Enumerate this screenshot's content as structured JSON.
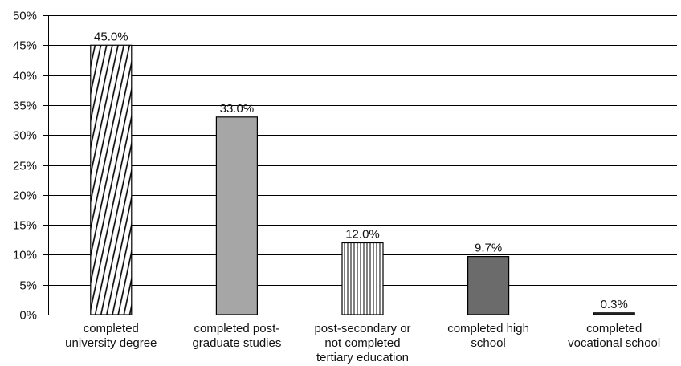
{
  "chart_data": {
    "type": "bar",
    "title": "",
    "xlabel": "",
    "ylabel": "",
    "ylim": [
      0,
      50
    ],
    "y_tick_step": 5,
    "y_tick_format": "percent",
    "grid": true,
    "legend": "none",
    "categories": [
      [
        "completed",
        "university degree"
      ],
      [
        "completed post-",
        "graduate studies"
      ],
      [
        "post-secondary or",
        "not completed",
        "tertiary education"
      ],
      [
        "completed high",
        "school"
      ],
      [
        "completed",
        "vocational school"
      ]
    ],
    "values": [
      45.0,
      33.0,
      12.0,
      9.7,
      0.3
    ],
    "data_labels": [
      "45.0%",
      "33.0%",
      "12.0%",
      "9.7%",
      "0.3%"
    ],
    "bar_styles": [
      {
        "fill": "diagonal-hatch",
        "color": "#000000"
      },
      {
        "fill": "solid",
        "color": "#a6a6a6"
      },
      {
        "fill": "vertical-hatch",
        "color": "#000000"
      },
      {
        "fill": "solid",
        "color": "#6b6b6b"
      },
      {
        "fill": "solid",
        "color": "#3a3a3a"
      }
    ]
  }
}
